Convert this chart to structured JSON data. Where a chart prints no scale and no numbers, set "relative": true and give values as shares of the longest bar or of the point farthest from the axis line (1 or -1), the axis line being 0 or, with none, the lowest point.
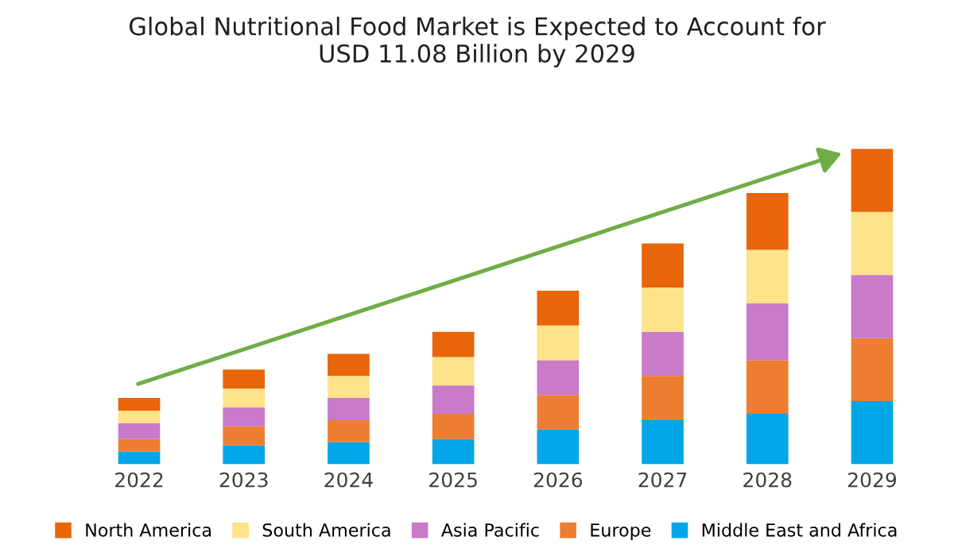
{
  "chart_data": {
    "type": "bar",
    "title": "Global Nutritional Food Market is Expected to Account for\nUSD 11.08 Billion by 2029",
    "categories": [
      "2022",
      "2023",
      "2024",
      "2025",
      "2026",
      "2027",
      "2028",
      "2029"
    ],
    "stacked": true,
    "relative": true,
    "legend": "bottom",
    "grid": false,
    "series": [
      {
        "name": "Middle East and Africa",
        "color": "#00a6e8",
        "values": [
          0.04,
          0.06,
          0.07,
          0.08,
          0.11,
          0.14,
          0.16,
          0.2
        ]
      },
      {
        "name": "Europe",
        "color": "#ed7d31",
        "values": [
          0.04,
          0.06,
          0.07,
          0.08,
          0.11,
          0.14,
          0.17,
          0.2
        ]
      },
      {
        "name": "Asia Pacific",
        "color": "#c97ac9",
        "values": [
          0.05,
          0.06,
          0.07,
          0.09,
          0.11,
          0.14,
          0.18,
          0.2
        ]
      },
      {
        "name": "South America",
        "color": "#fee38a",
        "values": [
          0.04,
          0.06,
          0.07,
          0.09,
          0.11,
          0.14,
          0.17,
          0.2
        ]
      },
      {
        "name": "North America",
        "color": "#e8650a",
        "values": [
          0.04,
          0.06,
          0.07,
          0.08,
          0.11,
          0.14,
          0.18,
          0.2
        ]
      }
    ]
  }
}
